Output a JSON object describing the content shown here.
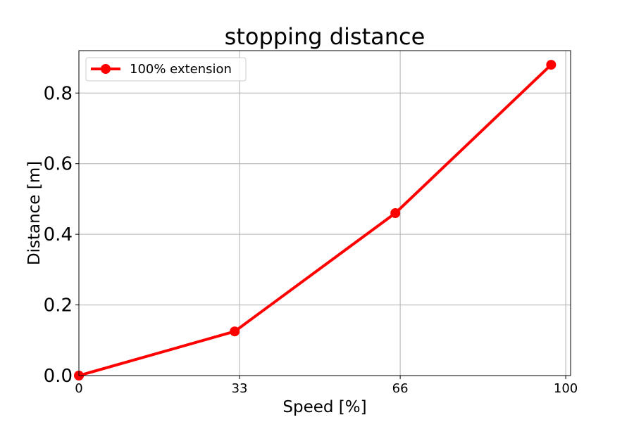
{
  "chart_data": {
    "type": "line",
    "title": "stopping distance",
    "xlabel": "Speed [%]",
    "ylabel": "Distance [m]",
    "xlim": [
      0,
      101
    ],
    "ylim": [
      0,
      0.92
    ],
    "xticks": [
      0,
      33,
      66,
      100
    ],
    "xtick_labels": [
      "0",
      "33",
      "66",
      "100"
    ],
    "yticks": [
      0.0,
      0.2,
      0.4,
      0.6,
      0.8
    ],
    "ytick_labels": [
      "0.0",
      "0.2",
      "0.4",
      "0.6",
      "0.8"
    ],
    "grid": true,
    "legend_position": "top-left",
    "series": [
      {
        "name": "100% extension",
        "color": "#ff0000",
        "marker": "circle",
        "x": [
          0,
          32,
          65,
          97
        ],
        "y": [
          0.0,
          0.125,
          0.46,
          0.88
        ]
      }
    ]
  }
}
